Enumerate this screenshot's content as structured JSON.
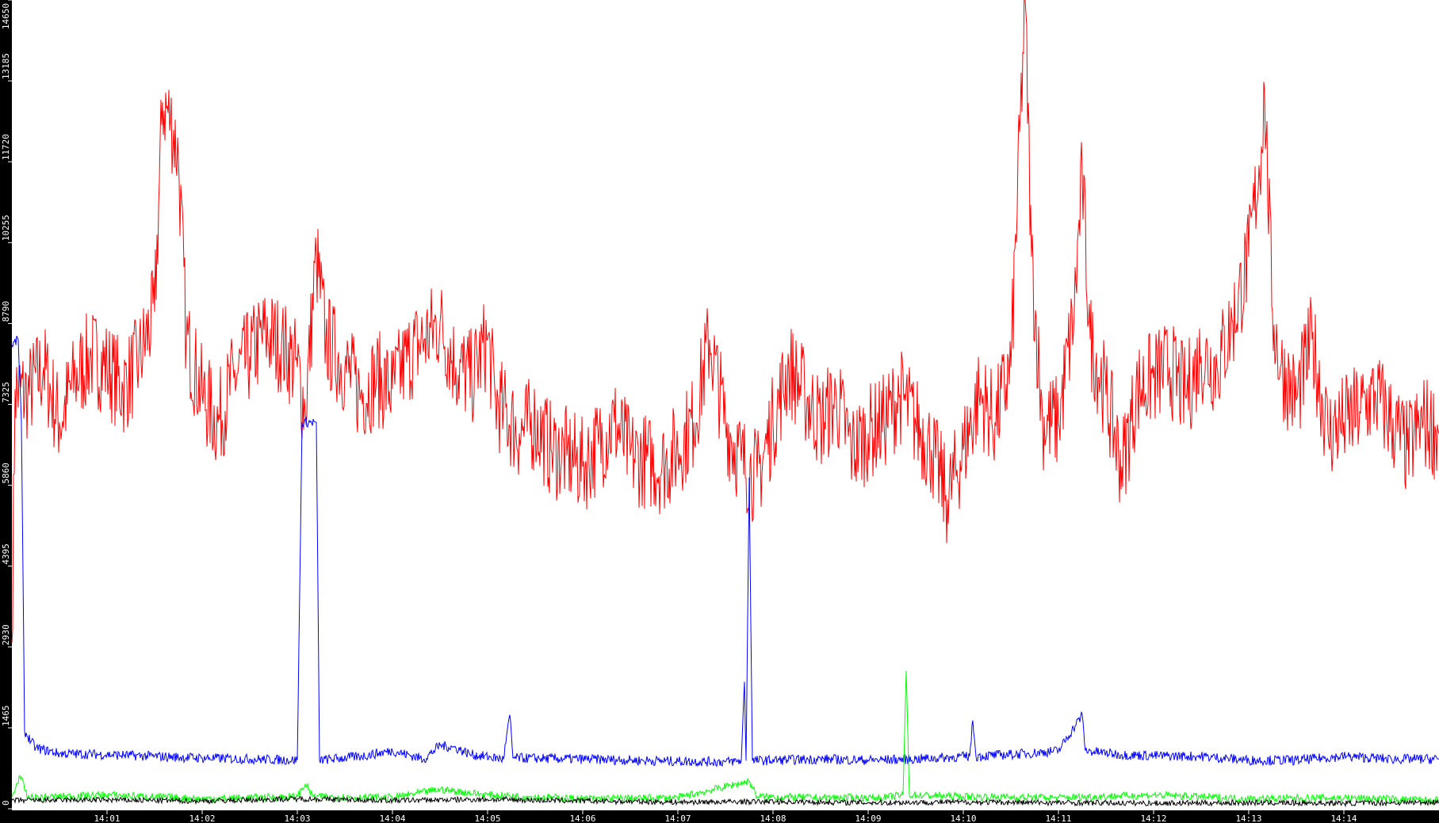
{
  "chart_data": {
    "type": "line",
    "title": "",
    "xlabel": "",
    "ylabel": "",
    "ylim": [
      0,
      14650
    ],
    "xlim": [
      "14:00:00",
      "14:15:00"
    ],
    "grid": false,
    "legend": "none",
    "y_ticks": [
      "0",
      "1465",
      "2930",
      "4395",
      "5860",
      "7325",
      "8790",
      "10255",
      "11720",
      "13185",
      "14650"
    ],
    "x_ticks": [
      "14:01",
      "14:02",
      "14:03",
      "14:04",
      "14:05",
      "14:06",
      "14:07",
      "14:08",
      "14:09",
      "14:10",
      "14:11",
      "14:12",
      "14:13",
      "14:14"
    ],
    "series": [
      {
        "color": "#ff0000",
        "points": [
          [
            "14:00:00",
            3000
          ],
          [
            "14:00:02",
            7600
          ],
          [
            "14:00:10",
            7500
          ],
          [
            "14:00:20",
            8000
          ],
          [
            "14:00:30",
            7000
          ],
          [
            "14:00:40",
            7800
          ],
          [
            "14:00:50",
            8200
          ],
          [
            "14:01:00",
            8000
          ],
          [
            "14:01:10",
            7600
          ],
          [
            "14:01:20",
            8100
          ],
          [
            "14:01:30",
            9000
          ],
          [
            "14:01:35",
            12800
          ],
          [
            "14:01:40",
            12500
          ],
          [
            "14:01:45",
            11800
          ],
          [
            "14:01:50",
            8500
          ],
          [
            "14:02:00",
            7500
          ],
          [
            "14:02:10",
            7000
          ],
          [
            "14:02:20",
            7800
          ],
          [
            "14:02:30",
            8200
          ],
          [
            "14:02:40",
            8600
          ],
          [
            "14:02:50",
            8400
          ],
          [
            "14:03:00",
            8000
          ],
          [
            "14:03:05",
            7200
          ],
          [
            "14:03:12",
            10000
          ],
          [
            "14:03:18",
            8500
          ],
          [
            "14:03:30",
            8000
          ],
          [
            "14:03:40",
            7500
          ],
          [
            "14:03:50",
            7800
          ],
          [
            "14:04:00",
            7600
          ],
          [
            "14:04:10",
            8200
          ],
          [
            "14:04:20",
            8500
          ],
          [
            "14:04:30",
            8800
          ],
          [
            "14:04:40",
            8000
          ],
          [
            "14:04:50",
            7800
          ],
          [
            "14:05:00",
            8500
          ],
          [
            "14:05:05",
            7400
          ],
          [
            "14:05:10",
            7200
          ],
          [
            "14:05:20",
            6800
          ],
          [
            "14:05:30",
            7000
          ],
          [
            "14:05:40",
            6500
          ],
          [
            "14:05:50",
            6400
          ],
          [
            "14:06:00",
            6200
          ],
          [
            "14:06:10",
            6600
          ],
          [
            "14:06:20",
            7000
          ],
          [
            "14:06:30",
            6400
          ],
          [
            "14:06:40",
            6300
          ],
          [
            "14:06:50",
            6200
          ],
          [
            "14:07:00",
            6500
          ],
          [
            "14:07:10",
            7000
          ],
          [
            "14:07:20",
            8500
          ],
          [
            "14:07:30",
            7000
          ],
          [
            "14:07:40",
            6300
          ],
          [
            "14:07:50",
            6000
          ],
          [
            "14:08:00",
            7000
          ],
          [
            "14:08:10",
            8000
          ],
          [
            "14:08:20",
            7500
          ],
          [
            "14:08:30",
            7000
          ],
          [
            "14:08:40",
            7400
          ],
          [
            "14:08:50",
            6500
          ],
          [
            "14:09:00",
            6800
          ],
          [
            "14:09:10",
            7000
          ],
          [
            "14:09:20",
            7500
          ],
          [
            "14:09:30",
            7000
          ],
          [
            "14:09:40",
            6500
          ],
          [
            "14:09:50",
            5600
          ],
          [
            "14:10:00",
            6500
          ],
          [
            "14:10:10",
            7500
          ],
          [
            "14:10:20",
            7000
          ],
          [
            "14:10:30",
            8000
          ],
          [
            "14:10:39",
            14650
          ],
          [
            "14:10:43",
            10000
          ],
          [
            "14:10:50",
            7000
          ],
          [
            "14:11:00",
            7000
          ],
          [
            "14:11:10",
            9000
          ],
          [
            "14:11:15",
            11500
          ],
          [
            "14:11:20",
            8500
          ],
          [
            "14:11:30",
            7500
          ],
          [
            "14:11:40",
            6200
          ],
          [
            "14:11:50",
            7600
          ],
          [
            "14:12:00",
            7800
          ],
          [
            "14:12:10",
            8000
          ],
          [
            "14:12:20",
            7500
          ],
          [
            "14:12:30",
            8200
          ],
          [
            "14:12:40",
            8000
          ],
          [
            "14:12:50",
            8800
          ],
          [
            "14:13:00",
            10000
          ],
          [
            "14:13:08",
            12000
          ],
          [
            "14:13:10",
            13000
          ],
          [
            "14:13:15",
            9000
          ],
          [
            "14:13:20",
            8000
          ],
          [
            "14:13:30",
            7400
          ],
          [
            "14:13:40",
            8500
          ],
          [
            "14:13:50",
            6800
          ],
          [
            "14:14:00",
            7000
          ],
          [
            "14:14:10",
            7200
          ],
          [
            "14:14:20",
            7500
          ],
          [
            "14:14:30",
            7000
          ],
          [
            "14:14:40",
            6500
          ],
          [
            "14:14:50",
            7000
          ],
          [
            "14:15:00",
            6800
          ]
        ]
      },
      {
        "color": "#0000ff",
        "points": [
          [
            "14:00:00",
            8400
          ],
          [
            "14:00:04",
            8500
          ],
          [
            "14:00:06",
            7000
          ],
          [
            "14:00:08",
            1400
          ],
          [
            "14:00:15",
            1100
          ],
          [
            "14:00:30",
            1000
          ],
          [
            "14:01:00",
            980
          ],
          [
            "14:01:30",
            950
          ],
          [
            "14:02:00",
            920
          ],
          [
            "14:02:30",
            900
          ],
          [
            "14:03:00",
            880
          ],
          [
            "14:03:03",
            7000
          ],
          [
            "14:03:12",
            7000
          ],
          [
            "14:03:14",
            880
          ],
          [
            "14:03:40",
            950
          ],
          [
            "14:04:00",
            1050
          ],
          [
            "14:04:20",
            900
          ],
          [
            "14:04:30",
            1150
          ],
          [
            "14:04:40",
            1100
          ],
          [
            "14:04:50",
            980
          ],
          [
            "14:05:10",
            900
          ],
          [
            "14:05:14",
            1700
          ],
          [
            "14:05:16",
            920
          ],
          [
            "14:06:00",
            900
          ],
          [
            "14:06:30",
            880
          ],
          [
            "14:07:00",
            860
          ],
          [
            "14:07:30",
            850
          ],
          [
            "14:07:40",
            870
          ],
          [
            "14:07:42",
            2300
          ],
          [
            "14:07:43",
            870
          ],
          [
            "14:07:45",
            6000
          ],
          [
            "14:07:47",
            870
          ],
          [
            "14:08:30",
            900
          ],
          [
            "14:09:00",
            880
          ],
          [
            "14:09:30",
            900
          ],
          [
            "14:10:04",
            950
          ],
          [
            "14:10:06",
            1600
          ],
          [
            "14:10:08",
            950
          ],
          [
            "14:10:40",
            1000
          ],
          [
            "14:11:00",
            1050
          ],
          [
            "14:11:15",
            1700
          ],
          [
            "14:11:17",
            1050
          ],
          [
            "14:11:40",
            980
          ],
          [
            "14:12:00",
            960
          ],
          [
            "14:12:30",
            950
          ],
          [
            "14:13:00",
            880
          ],
          [
            "14:13:30",
            880
          ],
          [
            "14:14:00",
            950
          ],
          [
            "14:14:30",
            900
          ],
          [
            "14:15:00",
            900
          ]
        ]
      },
      {
        "color": "#00ff00",
        "points": [
          [
            "14:00:00",
            200
          ],
          [
            "14:00:05",
            600
          ],
          [
            "14:00:10",
            200
          ],
          [
            "14:01:00",
            250
          ],
          [
            "14:02:00",
            180
          ],
          [
            "14:03:00",
            220
          ],
          [
            "14:03:05",
            450
          ],
          [
            "14:03:10",
            220
          ],
          [
            "14:04:00",
            200
          ],
          [
            "14:04:30",
            350
          ],
          [
            "14:05:00",
            250
          ],
          [
            "14:06:00",
            180
          ],
          [
            "14:07:00",
            200
          ],
          [
            "14:07:45",
            500
          ],
          [
            "14:07:50",
            220
          ],
          [
            "14:08:30",
            200
          ],
          [
            "14:09:10",
            200
          ],
          [
            "14:09:22",
            250
          ],
          [
            "14:09:24",
            2500
          ],
          [
            "14:09:26",
            250
          ],
          [
            "14:10:00",
            220
          ],
          [
            "14:11:00",
            200
          ],
          [
            "14:12:00",
            250
          ],
          [
            "14:13:00",
            180
          ],
          [
            "14:14:00",
            200
          ],
          [
            "14:15:00",
            150
          ]
        ]
      },
      {
        "color": "#000000",
        "points": [
          [
            "14:00:00",
            150
          ],
          [
            "14:01:00",
            160
          ],
          [
            "14:02:00",
            140
          ],
          [
            "14:03:00",
            180
          ],
          [
            "14:04:00",
            150
          ],
          [
            "14:05:00",
            170
          ],
          [
            "14:06:00",
            140
          ],
          [
            "14:07:00",
            120
          ],
          [
            "14:08:00",
            130
          ],
          [
            "14:09:00",
            110
          ],
          [
            "14:10:00",
            120
          ],
          [
            "14:11:00",
            110
          ],
          [
            "14:12:00",
            100
          ],
          [
            "14:13:00",
            110
          ],
          [
            "14:14:00",
            100
          ],
          [
            "14:15:00",
            120
          ]
        ]
      }
    ]
  }
}
